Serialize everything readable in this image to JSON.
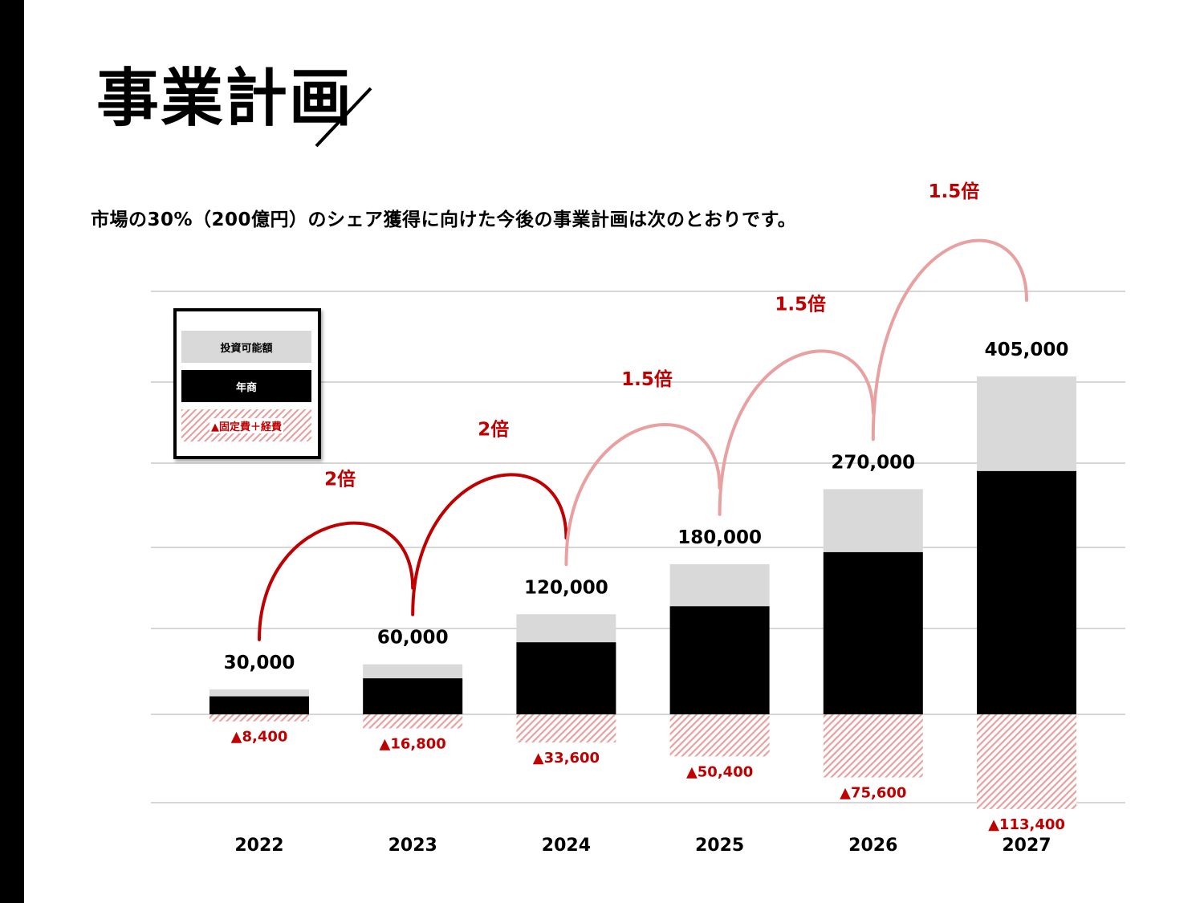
{
  "page": {
    "title": "事業計画",
    "subtitle": "市場の30%（200億円）のシェア獲得に向けた今後の事業計画は次のとおりです。"
  },
  "legend": {
    "invest": "投資可能額",
    "revenue": "年商",
    "cost": "▲固定費＋経費"
  },
  "colors": {
    "revenue": "#000000",
    "invest": "#d9d9d9",
    "cost": "#e8a0a0",
    "accent_red": "#c00000",
    "arc_dark": "#c00000",
    "arc_light": "#e8a0a0"
  },
  "chart_data": {
    "type": "bar",
    "stacked": true,
    "categories": [
      "2022",
      "2023",
      "2024",
      "2025",
      "2026",
      "2027"
    ],
    "series": [
      {
        "name": "年商",
        "values": [
          21600,
          43200,
          86400,
          129600,
          194400,
          291600
        ]
      },
      {
        "name": "投資可能額",
        "values": [
          8400,
          16800,
          33600,
          50400,
          75600,
          113400
        ]
      },
      {
        "name": "▲固定費＋経費",
        "values": [
          -8400,
          -16800,
          -33600,
          -50400,
          -75600,
          -113400
        ]
      }
    ],
    "total_labels": [
      "30,000",
      "60,000",
      "120,000",
      "180,000",
      "270,000",
      "405,000"
    ],
    "cost_labels": [
      "▲8,400",
      "▲16,800",
      "▲33,600",
      "▲50,400",
      "▲75,600",
      "▲113,400"
    ],
    "growth_arrows": [
      {
        "from": "2022",
        "to": "2023",
        "label": "2倍"
      },
      {
        "from": "2023",
        "to": "2024",
        "label": "2倍"
      },
      {
        "from": "2024",
        "to": "2025",
        "label": "1.5倍"
      },
      {
        "from": "2025",
        "to": "2026",
        "label": "1.5倍"
      },
      {
        "from": "2026",
        "to": "2027",
        "label": "1.5倍"
      }
    ],
    "grid": true,
    "legend_position": "top-left"
  }
}
